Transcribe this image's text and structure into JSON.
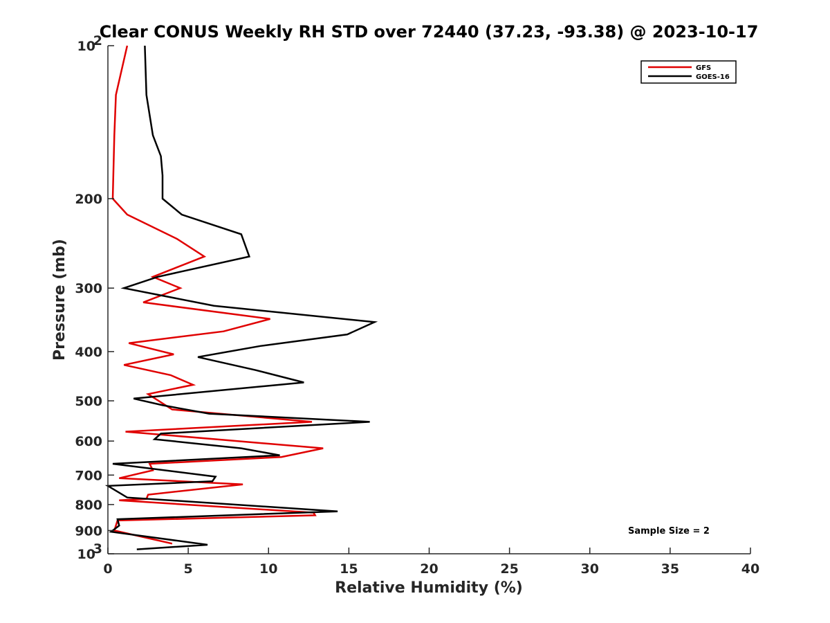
{
  "chart_data": {
    "type": "line",
    "title": "Clear CONUS Weekly RH STD over 72440 (37.23, -93.38) @ 2023-10-17",
    "xlabel": "Relative Humidity (%)",
    "ylabel": "Pressure (mb)",
    "xlim": [
      0,
      40
    ],
    "ylim": [
      100,
      1000
    ],
    "yscale": "log",
    "y_reversed": true,
    "xticks": [
      0,
      5,
      10,
      15,
      20,
      25,
      30,
      35,
      40
    ],
    "yticks": [
      {
        "value": 100,
        "label": "10",
        "sup": "2"
      },
      {
        "value": 200,
        "label": "200"
      },
      {
        "value": 300,
        "label": "300"
      },
      {
        "value": 400,
        "label": "400"
      },
      {
        "value": 500,
        "label": "500"
      },
      {
        "value": 600,
        "label": "600"
      },
      {
        "value": 700,
        "label": "700"
      },
      {
        "value": 800,
        "label": "800"
      },
      {
        "value": 900,
        "label": "900"
      },
      {
        "value": 1000,
        "label": "10",
        "sup": "3"
      }
    ],
    "grid": false,
    "legend_position": "top-right",
    "series": [
      {
        "name": "GFS",
        "color": "#e00000",
        "x": [
          1.2,
          0.5,
          0.4,
          0.3,
          1.2,
          4.3,
          6.0,
          2.8,
          4.5,
          2.2,
          10.1,
          7.2,
          1.3,
          4.1,
          1.0,
          3.9,
          5.3,
          2.5,
          4.0,
          12.7,
          1.1,
          13.4,
          10.8,
          2.6,
          2.8,
          0.7,
          8.4,
          2.5,
          2.4,
          0.7,
          12.8,
          12.9,
          0.6,
          0.4,
          4.0
        ],
        "y": [
          100,
          125,
          150,
          200,
          215,
          240,
          260,
          285,
          300,
          320,
          345,
          365,
          385,
          405,
          425,
          445,
          465,
          485,
          520,
          550,
          575,
          620,
          645,
          665,
          685,
          710,
          730,
          765,
          780,
          785,
          830,
          840,
          860,
          900,
          955
        ]
      },
      {
        "name": "GOES-16",
        "color": "#000000",
        "x": [
          2.3,
          2.4,
          2.8,
          3.3,
          3.4,
          3.4,
          4.6,
          8.3,
          8.8,
          3.1,
          1.0,
          6.6,
          16.6,
          14.9,
          9.5,
          5.6,
          9.2,
          12.2,
          1.6,
          3.4,
          6.3,
          16.3,
          3.3,
          2.9,
          8.3,
          10.7,
          0.3,
          6.7,
          6.5,
          0.0,
          1.2,
          14.3,
          0.6,
          0.7,
          0.5,
          0.2,
          6.2,
          1.8
        ],
        "y": [
          100,
          125,
          150,
          165,
          180,
          200,
          215,
          235,
          260,
          285,
          300,
          325,
          350,
          370,
          390,
          410,
          435,
          460,
          495,
          510,
          530,
          550,
          580,
          595,
          620,
          640,
          665,
          705,
          720,
          735,
          775,
          825,
          855,
          880,
          890,
          905,
          960,
          980
        ]
      }
    ],
    "annotation": "Sample Size = 2"
  }
}
